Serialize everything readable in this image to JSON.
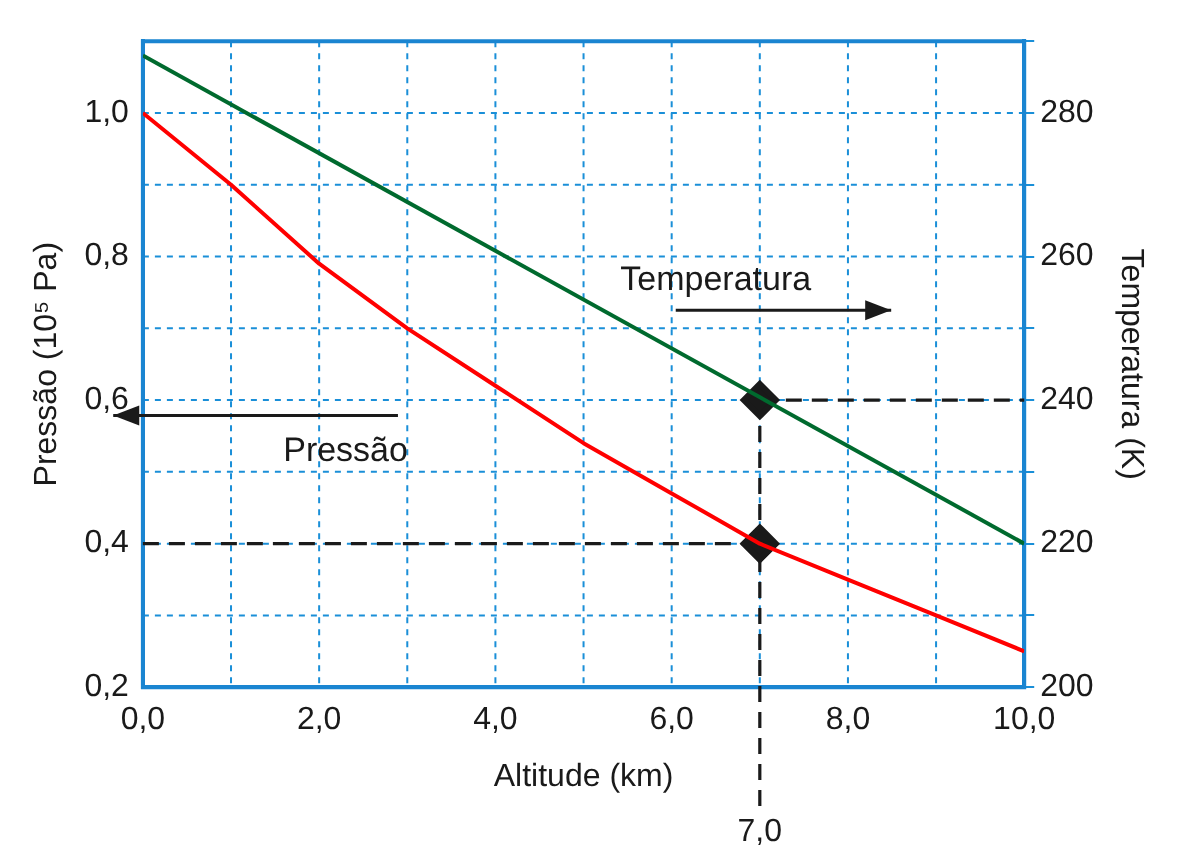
{
  "chart_data": {
    "type": "line",
    "xlabel": "Altitude (km)",
    "ylabel": "Pressão (10⁵ Pa)",
    "y2label": "Temperatura (K)",
    "x": [
      0,
      1,
      2,
      3,
      4,
      5,
      6,
      7,
      8,
      9,
      10
    ],
    "series": [
      {
        "type": "line",
        "color": "#ff0000",
        "values": [
          1.0,
          0.9,
          0.79,
          0.7,
          0.62,
          0.54,
          0.47,
          0.4,
          0.35,
          0.3,
          0.25
        ]
      },
      {
        "type": "line",
        "color": "#006a2e",
        "axis": "y2",
        "x": [
          0,
          10
        ],
        "values": [
          288,
          220
        ]
      },
      {
        "type": "scatter",
        "color": "#1a1a1a",
        "marker": "diamond",
        "x": [
          7
        ],
        "values": [
          0.4
        ]
      },
      {
        "type": "scatter",
        "color": "#1a1a1a",
        "marker": "diamond",
        "axis": "y2",
        "x": [
          7
        ],
        "values": [
          240
        ]
      }
    ],
    "xlim": [
      0,
      10
    ],
    "ylim": [
      0.2,
      1.1
    ],
    "y2lim": [
      200,
      290
    ],
    "xticks": [
      {
        "value": 0,
        "label": "0,0"
      },
      {
        "value": 1,
        "label": null
      },
      {
        "value": 2,
        "label": "2,0"
      },
      {
        "value": 3,
        "label": null
      },
      {
        "value": 4,
        "label": "4,0"
      },
      {
        "value": 5,
        "label": null
      },
      {
        "value": 6,
        "label": "6,0"
      },
      {
        "value": 7,
        "label": null
      },
      {
        "value": 8,
        "label": "8,0"
      },
      {
        "value": 9,
        "label": null
      },
      {
        "value": 10,
        "label": "10,0"
      }
    ],
    "yticks": [
      {
        "value": 0.2,
        "label": "0,2"
      },
      {
        "value": 0.3,
        "label": null
      },
      {
        "value": 0.4,
        "label": "0,4"
      },
      {
        "value": 0.5,
        "label": null
      },
      {
        "value": 0.6,
        "label": "0,6"
      },
      {
        "value": 0.7,
        "label": null
      },
      {
        "value": 0.8,
        "label": "0,8"
      },
      {
        "value": 0.9,
        "label": null
      },
      {
        "value": 1.0,
        "label": "1,0"
      },
      {
        "value": 1.1,
        "label": null
      }
    ],
    "y2ticks": [
      200,
      {
        "value": 210,
        "label": null
      },
      220,
      {
        "value": 230,
        "label": null
      },
      240,
      {
        "value": 250,
        "label": null
      },
      260,
      {
        "value": 270,
        "label": null
      },
      280,
      {
        "value": 290,
        "label": null
      }
    ],
    "ref_lines": [
      {
        "axis": "x",
        "value": 7,
        "label": "7,0",
        "line_style": "dashed",
        "color": "#1a1a1a"
      },
      {
        "axis": "y",
        "value": 0.4,
        "line_style": "dashed",
        "color": "#1a1a1a"
      },
      {
        "axis": "y2",
        "value": 240,
        "line_style": "dashed",
        "color": "#1a1a1a"
      }
    ],
    "annotations": [
      "Temperatura",
      "Pressão"
    ],
    "grid": true,
    "legend": false
  }
}
